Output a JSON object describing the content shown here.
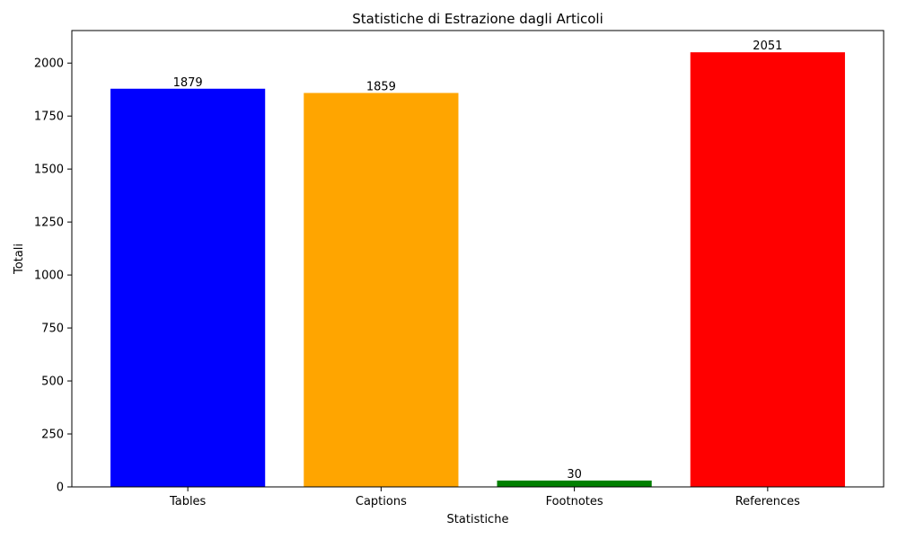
{
  "chart_data": {
    "type": "bar",
    "title": "Statistiche di Estrazione dagli Articoli",
    "xlabel": "Statistiche",
    "ylabel": "Totali",
    "categories": [
      "Tables",
      "Captions",
      "Footnotes",
      "References"
    ],
    "values": [
      1879,
      1859,
      30,
      2051
    ],
    "data_labels": [
      "1879",
      "1859",
      "30",
      "2051"
    ],
    "colors": [
      "#0000ff",
      "#ffa500",
      "#008000",
      "#ff0000"
    ],
    "ylim": [
      0,
      2153.55
    ],
    "yticks": [
      0,
      250,
      500,
      750,
      1000,
      1250,
      1500,
      1750,
      2000
    ],
    "ytick_labels": [
      "0",
      "250",
      "500",
      "750",
      "1000",
      "1250",
      "1500",
      "1750",
      "2000"
    ],
    "grid": false,
    "legend": "none"
  }
}
